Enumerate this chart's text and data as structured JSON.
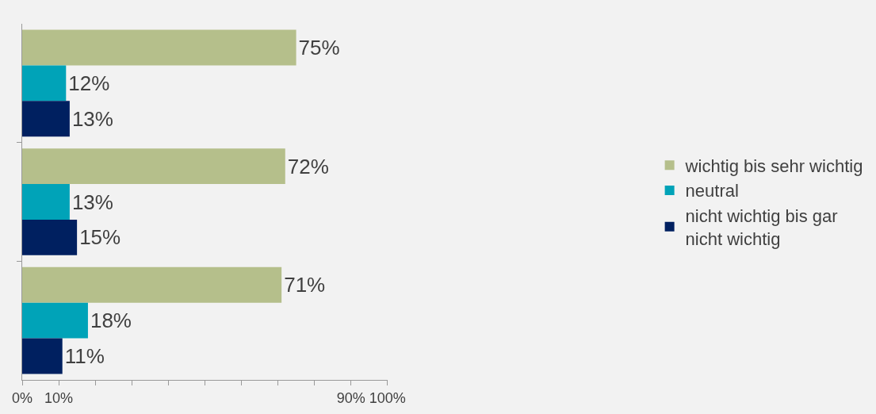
{
  "chart_data": {
    "type": "bar",
    "orientation": "horizontal",
    "categories": [
      null,
      null,
      null
    ],
    "series": [
      {
        "name": "wichtig bis sehr wichtig",
        "color": "#b5bf8b",
        "values": [
          75,
          72,
          71
        ],
        "value_labels": [
          "75%",
          "72%",
          "71%"
        ]
      },
      {
        "name": "neutral",
        "color": "#00a3b8",
        "values": [
          12,
          13,
          18
        ],
        "value_labels": [
          "12%",
          "13%",
          "18%"
        ]
      },
      {
        "name": "nicht wichtig bis gar nicht wichtig",
        "color": "#002060",
        "values": [
          13,
          15,
          11
        ],
        "value_labels": [
          "13%",
          "15%",
          "11%"
        ]
      }
    ],
    "xlim": [
      0,
      100
    ],
    "xticks": [
      {
        "value": 0,
        "label": "0%"
      },
      {
        "value": 10,
        "label": "10%"
      },
      {
        "value": 20,
        "label": null
      },
      {
        "value": 30,
        "label": null
      },
      {
        "value": 40,
        "label": null
      },
      {
        "value": 50,
        "label": null
      },
      {
        "value": 60,
        "label": null
      },
      {
        "value": 70,
        "label": null
      },
      {
        "value": 80,
        "label": null
      },
      {
        "value": 90,
        "label": "90%"
      },
      {
        "value": 100,
        "label": "100%"
      }
    ],
    "tick_labels": "x",
    "grid": false,
    "legend": "right"
  }
}
